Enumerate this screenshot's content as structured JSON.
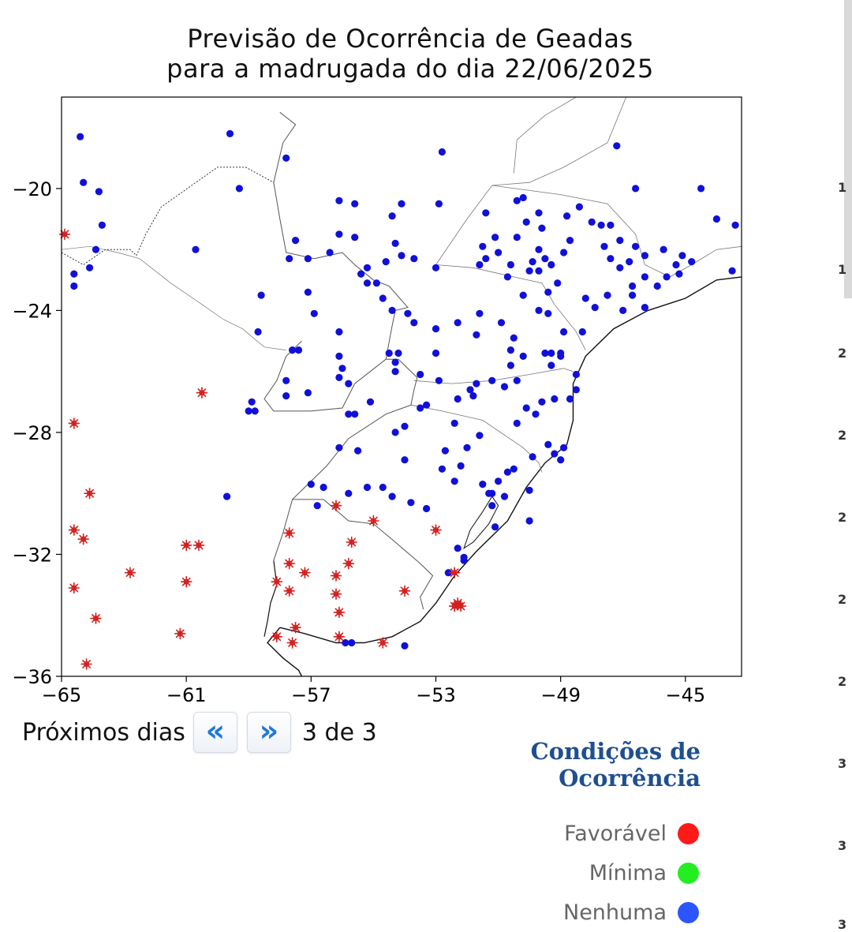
{
  "title": {
    "line1": "Previsão de Ocorrência de Geadas",
    "line2": "para a madrugada do dia 22/06/2025"
  },
  "chart_data": {
    "type": "scatter",
    "xlim": [
      -65,
      -43.2
    ],
    "ylim": [
      -36,
      -17
    ],
    "xticks": [
      -65,
      -61,
      -57,
      -53,
      -49,
      -45
    ],
    "yticks": [
      -20,
      -24,
      -28,
      -32,
      -36
    ],
    "grid": false,
    "series": [
      {
        "name": "Favorável",
        "color": "#d42020",
        "marker": "asterisk",
        "points": [
          [
            -64.9,
            -21.5
          ],
          [
            -64.6,
            -27.7
          ],
          [
            -64.1,
            -30.0
          ],
          [
            -64.6,
            -31.2
          ],
          [
            -64.3,
            -31.5
          ],
          [
            -64.6,
            -33.1
          ],
          [
            -63.9,
            -34.1
          ],
          [
            -64.2,
            -35.6
          ],
          [
            -62.8,
            -32.6
          ],
          [
            -61.0,
            -32.9
          ],
          [
            -61.0,
            -31.7
          ],
          [
            -60.6,
            -31.7
          ],
          [
            -60.5,
            -26.7
          ],
          [
            -61.2,
            -34.6
          ],
          [
            -58.1,
            -32.9
          ],
          [
            -58.1,
            -34.7
          ],
          [
            -57.7,
            -31.3
          ],
          [
            -57.7,
            -32.3
          ],
          [
            -57.7,
            -33.2
          ],
          [
            -57.2,
            -32.6
          ],
          [
            -57.5,
            -34.4
          ],
          [
            -57.6,
            -34.9
          ],
          [
            -56.2,
            -30.4
          ],
          [
            -56.2,
            -32.7
          ],
          [
            -56.2,
            -33.3
          ],
          [
            -55.8,
            -32.3
          ],
          [
            -55.7,
            -31.6
          ],
          [
            -56.1,
            -33.9
          ],
          [
            -56.1,
            -34.7
          ],
          [
            -55.0,
            -30.9
          ],
          [
            -54.7,
            -34.9
          ],
          [
            -54.0,
            -33.2
          ],
          [
            -53.0,
            -31.2
          ],
          [
            -52.4,
            -32.6
          ],
          [
            -52.4,
            -33.7
          ],
          [
            -52.3,
            -33.6
          ],
          [
            -52.2,
            -33.7
          ]
        ]
      },
      {
        "name": "Mínima",
        "color": "#22dd22",
        "marker": "circle",
        "points": []
      },
      {
        "name": "Nenhuma",
        "color": "#1010d8",
        "marker": "circle",
        "points": [
          [
            -64.4,
            -18.3
          ],
          [
            -64.3,
            -19.8
          ],
          [
            -63.8,
            -20.1
          ],
          [
            -63.7,
            -21.2
          ],
          [
            -63.9,
            -22.0
          ],
          [
            -64.6,
            -22.8
          ],
          [
            -64.6,
            -23.2
          ],
          [
            -64.1,
            -22.6
          ],
          [
            -60.7,
            -22.0
          ],
          [
            -59.6,
            -18.2
          ],
          [
            -57.8,
            -19.0
          ],
          [
            -56.1,
            -20.4
          ],
          [
            -55.6,
            -20.5
          ],
          [
            -54.4,
            -20.9
          ],
          [
            -54.1,
            -20.5
          ],
          [
            -52.9,
            -20.5
          ],
          [
            -52.8,
            -18.8
          ],
          [
            -57.5,
            -21.7
          ],
          [
            -56.1,
            -21.5
          ],
          [
            -57.1,
            -22.3
          ],
          [
            -56.4,
            -22.1
          ],
          [
            -55.6,
            -21.6
          ],
          [
            -54.3,
            -21.8
          ],
          [
            -54.1,
            -22.2
          ],
          [
            -54.6,
            -22.4
          ],
          [
            -55.2,
            -22.6
          ],
          [
            -55.4,
            -22.8
          ],
          [
            -54.9,
            -23.1
          ],
          [
            -55.2,
            -23.1
          ],
          [
            -54.7,
            -23.6
          ],
          [
            -54.4,
            -24.0
          ],
          [
            -53.7,
            -22.3
          ],
          [
            -53.0,
            -22.6
          ],
          [
            -57.7,
            -22.3
          ],
          [
            -58.6,
            -23.5
          ],
          [
            -58.7,
            -24.7
          ],
          [
            -57.1,
            -23.4
          ],
          [
            -56.9,
            -24.1
          ],
          [
            -56.1,
            -24.7
          ],
          [
            -57.4,
            -25.3
          ],
          [
            -57.6,
            -25.3
          ],
          [
            -56.1,
            -25.5
          ],
          [
            -56.0,
            -25.9
          ],
          [
            -56.1,
            -26.2
          ],
          [
            -57.8,
            -26.3
          ],
          [
            -57.8,
            -26.8
          ],
          [
            -57.1,
            -26.7
          ],
          [
            -55.8,
            -26.4
          ],
          [
            -55.8,
            -27.4
          ],
          [
            -55.6,
            -27.4
          ],
          [
            -55.1,
            -27.0
          ],
          [
            -54.2,
            -25.4
          ],
          [
            -54.3,
            -26.0
          ],
          [
            -54.3,
            -25.7
          ],
          [
            -54.5,
            -25.4
          ],
          [
            -53.9,
            -24.1
          ],
          [
            -53.7,
            -24.4
          ],
          [
            -53.5,
            -26.1
          ],
          [
            -52.9,
            -26.3
          ],
          [
            -53.3,
            -27.1
          ],
          [
            -53.5,
            -27.2
          ],
          [
            -52.4,
            -27.7
          ],
          [
            -54.0,
            -27.8
          ],
          [
            -54.0,
            -28.9
          ],
          [
            -52.7,
            -28.6
          ],
          [
            -52.8,
            -29.2
          ],
          [
            -52.2,
            -29.1
          ],
          [
            -52.4,
            -29.6
          ],
          [
            -52.0,
            -28.5
          ],
          [
            -51.6,
            -28.1
          ],
          [
            -51.9,
            -26.6
          ],
          [
            -52.3,
            -26.9
          ],
          [
            -51.7,
            -26.4
          ],
          [
            -51.8,
            -26.8
          ],
          [
            -51.2,
            -26.3
          ],
          [
            -50.8,
            -26.5
          ],
          [
            -50.4,
            -26.3
          ],
          [
            -50.2,
            -25.5
          ],
          [
            -50.6,
            -25.8
          ],
          [
            -50.6,
            -25.3
          ],
          [
            -50.5,
            -24.9
          ],
          [
            -50.9,
            -24.4
          ],
          [
            -51.6,
            -24.1
          ],
          [
            -51.7,
            -24.8
          ],
          [
            -52.3,
            -24.4
          ],
          [
            -53.0,
            -24.6
          ],
          [
            -53.0,
            -25.4
          ],
          [
            -51.6,
            -22.5
          ],
          [
            -51.4,
            -22.3
          ],
          [
            -51.5,
            -21.9
          ],
          [
            -51.4,
            -20.8
          ],
          [
            -51.1,
            -21.6
          ],
          [
            -51.0,
            -22.1
          ],
          [
            -50.7,
            -22.9
          ],
          [
            -50.6,
            -22.5
          ],
          [
            -50.4,
            -21.6
          ],
          [
            -50.1,
            -21.1
          ],
          [
            -50.4,
            -20.4
          ],
          [
            -50.2,
            -20.3
          ],
          [
            -49.7,
            -20.8
          ],
          [
            -49.6,
            -21.3
          ],
          [
            -49.7,
            -22.0
          ],
          [
            -49.5,
            -22.3
          ],
          [
            -49.3,
            -22.5
          ],
          [
            -49.7,
            -22.7
          ],
          [
            -50.0,
            -22.7
          ],
          [
            -49.1,
            -23.1
          ],
          [
            -49.4,
            -23.4
          ],
          [
            -49.4,
            -24.1
          ],
          [
            -49.7,
            -24.0
          ],
          [
            -50.2,
            -23.5
          ],
          [
            -49.9,
            -22.4
          ],
          [
            -48.7,
            -21.7
          ],
          [
            -48.9,
            -22.1
          ],
          [
            -48.8,
            -20.9
          ],
          [
            -48.4,
            -20.6
          ],
          [
            -48.0,
            -21.1
          ],
          [
            -47.7,
            -21.2
          ],
          [
            -47.4,
            -21.2
          ],
          [
            -47.1,
            -21.7
          ],
          [
            -47.6,
            -21.9
          ],
          [
            -47.4,
            -22.3
          ],
          [
            -47.1,
            -22.6
          ],
          [
            -46.8,
            -22.4
          ],
          [
            -46.6,
            -21.9
          ],
          [
            -46.3,
            -22.2
          ],
          [
            -46.3,
            -22.9
          ],
          [
            -45.9,
            -23.2
          ],
          [
            -45.6,
            -22.9
          ],
          [
            -45.3,
            -22.5
          ],
          [
            -45.1,
            -22.2
          ],
          [
            -46.7,
            -23.2
          ],
          [
            -46.7,
            -23.5
          ],
          [
            -47.5,
            -23.5
          ],
          [
            -47.9,
            -23.9
          ],
          [
            -48.2,
            -23.6
          ],
          [
            -48.3,
            -24.7
          ],
          [
            -48.9,
            -24.7
          ],
          [
            -49.0,
            -25.4
          ],
          [
            -49.3,
            -25.4
          ],
          [
            -49.3,
            -25.8
          ],
          [
            -49.0,
            -25.5
          ],
          [
            -48.5,
            -26.1
          ],
          [
            -48.5,
            -26.6
          ],
          [
            -48.7,
            -26.9
          ],
          [
            -49.2,
            -26.9
          ],
          [
            -49.6,
            -27.0
          ],
          [
            -49.8,
            -27.4
          ],
          [
            -50.1,
            -27.2
          ],
          [
            -50.4,
            -27.7
          ],
          [
            -49.4,
            -28.4
          ],
          [
            -49.2,
            -28.7
          ],
          [
            -49.9,
            -28.8
          ],
          [
            -50.5,
            -29.2
          ],
          [
            -50.7,
            -29.3
          ],
          [
            -51.0,
            -29.6
          ],
          [
            -50.8,
            -30.1
          ],
          [
            -51.3,
            -30.0
          ],
          [
            -51.2,
            -30.4
          ],
          [
            -51.5,
            -29.7
          ],
          [
            -50.0,
            -29.9
          ],
          [
            -50.0,
            -30.9
          ],
          [
            -51.1,
            -31.1
          ],
          [
            -52.1,
            -32.1
          ],
          [
            -52.3,
            -31.8
          ],
          [
            -53.3,
            -30.5
          ],
          [
            -53.8,
            -30.3
          ],
          [
            -54.4,
            -30.1
          ],
          [
            -54.7,
            -29.8
          ],
          [
            -55.2,
            -29.8
          ],
          [
            -55.8,
            -30.0
          ],
          [
            -56.8,
            -30.4
          ],
          [
            -57.0,
            -29.7
          ],
          [
            -56.6,
            -29.8
          ],
          [
            -55.5,
            -28.6
          ],
          [
            -56.1,
            -28.5
          ],
          [
            -54.3,
            -28.0
          ],
          [
            -52.1,
            -32.2
          ],
          [
            -52.6,
            -32.6
          ],
          [
            -51.2,
            -30.0
          ],
          [
            -49.0,
            -28.9
          ],
          [
            -48.9,
            -28.5
          ],
          [
            -49.5,
            -25.4
          ],
          [
            -47.0,
            -24.0
          ],
          [
            -46.3,
            -23.9
          ],
          [
            -44.5,
            -20.0
          ],
          [
            -44.0,
            -21.0
          ],
          [
            -43.4,
            -21.2
          ],
          [
            -43.5,
            -22.7
          ],
          [
            -44.8,
            -22.4
          ],
          [
            -47.2,
            -18.6
          ],
          [
            -46.6,
            -20.0
          ],
          [
            -45.2,
            -22.8
          ],
          [
            -45.7,
            -22.0
          ],
          [
            -54.0,
            -35.0
          ],
          [
            -55.9,
            -34.9
          ],
          [
            -55.7,
            -34.9
          ],
          [
            -59.7,
            -30.1
          ],
          [
            -59.0,
            -27.3
          ],
          [
            -58.8,
            -27.3
          ],
          [
            -59.3,
            -20.0
          ],
          [
            -58.9,
            -27.0
          ]
        ]
      }
    ]
  },
  "nav": {
    "label": "Próximos dias",
    "prev_glyph": "«",
    "next_glyph": "»",
    "counter": "3 de 3"
  },
  "legend": {
    "title": "Condições de Ocorrência",
    "items": [
      {
        "label": "Favorável",
        "color": "#ff1a1a"
      },
      {
        "label": "Mínima",
        "color": "#22ee22"
      },
      {
        "label": "Nenhuma",
        "color": "#2d55ff"
      }
    ]
  },
  "side_strip": {
    "fragments": [
      "1",
      "1",
      "2",
      "2",
      "2",
      "2",
      "2",
      "3",
      "3",
      "3"
    ]
  }
}
